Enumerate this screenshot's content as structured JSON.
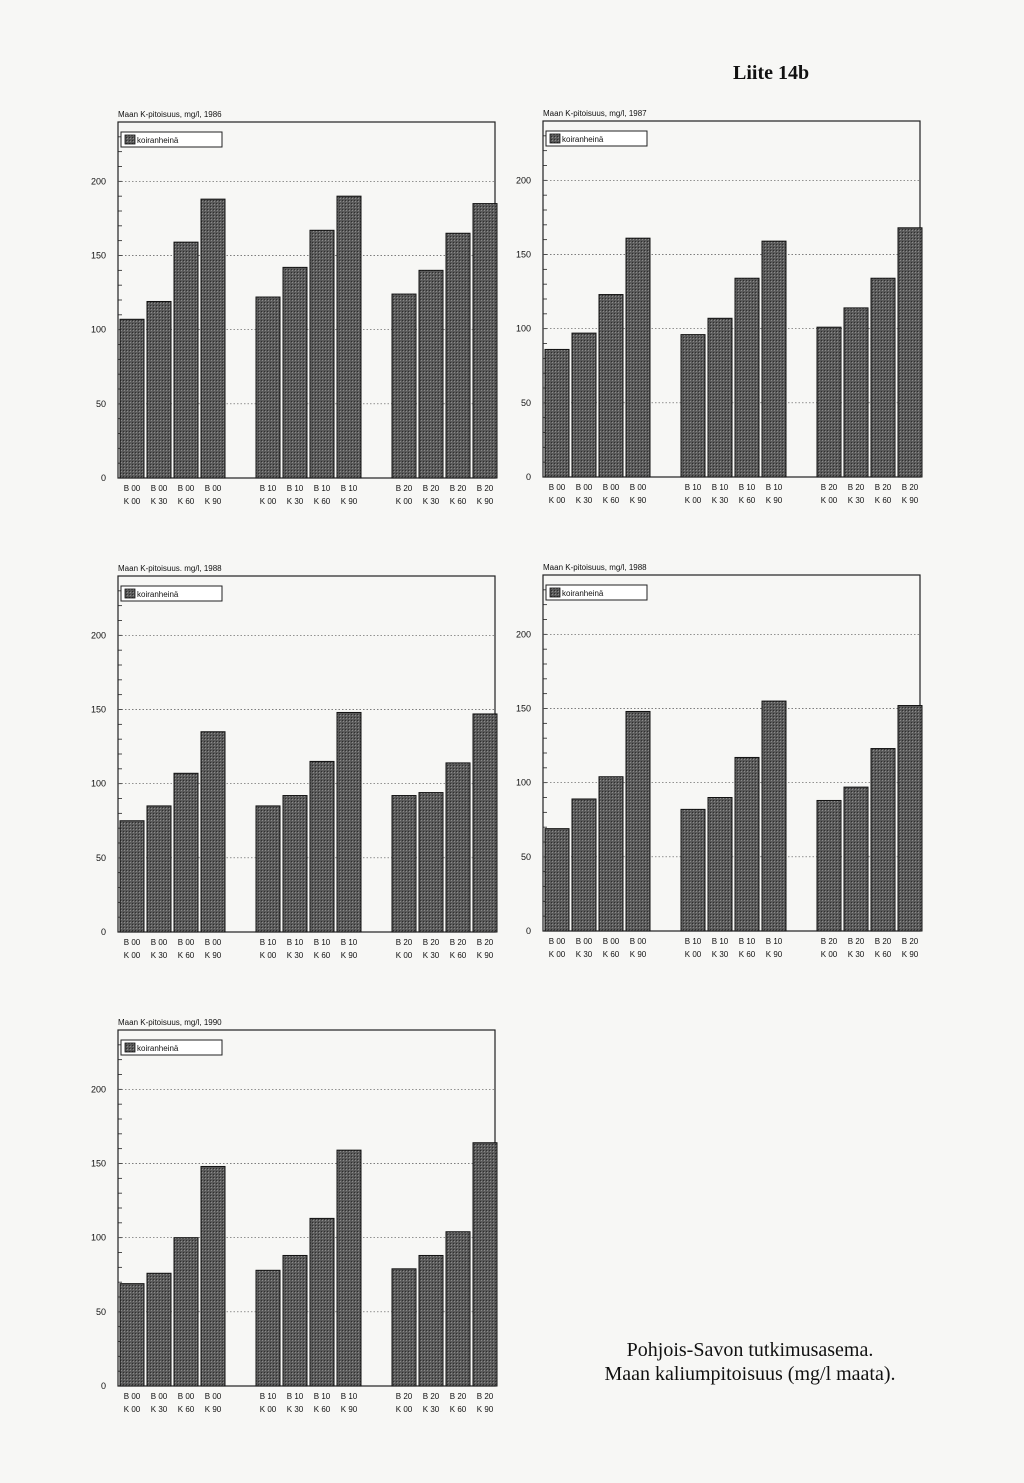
{
  "page_label": "Liite 14b",
  "caption": {
    "line1": "Pohjois-Savon tutkimusasema.",
    "line2": "Maan kaliumpitoisuus (mg/l maata)."
  },
  "colors": {
    "bar_fill": "#5a5a5a",
    "bar_stroke": "#111111",
    "axis": "#222222",
    "gridline": "#555555"
  },
  "chart_data": [
    {
      "type": "bar",
      "title": "Maan K-pitoisuus, mg/l, 1986",
      "legend": "koiranheinä",
      "yticks": [
        0,
        50,
        100,
        150,
        200
      ],
      "ylim": [
        0,
        240
      ],
      "groups": [
        {
          "b_labels": [
            "B 00",
            "B 00",
            "B 00",
            "B 00"
          ],
          "k_labels": [
            "K 00",
            "K 30",
            "K 60",
            "K 90"
          ],
          "values": [
            107,
            119,
            159,
            188
          ]
        },
        {
          "b_labels": [
            "B 10",
            "B 10",
            "B 10",
            "B 10"
          ],
          "k_labels": [
            "K 00",
            "K 30",
            "K 60",
            "K 90"
          ],
          "values": [
            122,
            142,
            167,
            190
          ]
        },
        {
          "b_labels": [
            "B 20",
            "B 20",
            "B 20",
            "B 20"
          ],
          "k_labels": [
            "K 00",
            "K 30",
            "K 60",
            "K 90"
          ],
          "values": [
            124,
            140,
            165,
            185
          ]
        }
      ]
    },
    {
      "type": "bar",
      "title": "Maan K-pitoisuus, mg/l, 1987",
      "legend": "koiranheinä",
      "yticks": [
        0,
        50,
        100,
        150,
        200
      ],
      "ylim": [
        0,
        240
      ],
      "groups": [
        {
          "b_labels": [
            "B 00",
            "B 00",
            "B 00",
            "B 00"
          ],
          "k_labels": [
            "K 00",
            "K 30",
            "K 60",
            "K 90"
          ],
          "values": [
            86,
            97,
            123,
            161
          ]
        },
        {
          "b_labels": [
            "B 10",
            "B 10",
            "B 10",
            "B 10"
          ],
          "k_labels": [
            "K 00",
            "K 30",
            "K 60",
            "K 90"
          ],
          "values": [
            96,
            107,
            134,
            159
          ]
        },
        {
          "b_labels": [
            "B 20",
            "B 20",
            "B 20",
            "B 20"
          ],
          "k_labels": [
            "K 00",
            "K 30",
            "K 60",
            "K 90"
          ],
          "values": [
            101,
            114,
            134,
            168
          ]
        }
      ]
    },
    {
      "type": "bar",
      "title": "Maan K-pitoisuus. mg/l, 1988",
      "legend": "koiranheinä",
      "yticks": [
        0,
        50,
        100,
        150,
        200
      ],
      "ylim": [
        0,
        240
      ],
      "groups": [
        {
          "b_labels": [
            "B 00",
            "B 00",
            "B 00",
            "B 00"
          ],
          "k_labels": [
            "K 00",
            "K 30",
            "K 60",
            "K 90"
          ],
          "values": [
            75,
            85,
            107,
            135
          ]
        },
        {
          "b_labels": [
            "B 10",
            "B 10",
            "B 10",
            "B 10"
          ],
          "k_labels": [
            "K 00",
            "K 30",
            "K 60",
            "K 90"
          ],
          "values": [
            85,
            92,
            115,
            148
          ]
        },
        {
          "b_labels": [
            "B 20",
            "B 20",
            "B 20",
            "B 20"
          ],
          "k_labels": [
            "K 00",
            "K 30",
            "K 60",
            "K 90"
          ],
          "values": [
            92,
            94,
            114,
            147
          ]
        }
      ]
    },
    {
      "type": "bar",
      "title": "Maan K-pitoisuus, mg/l, 1988",
      "legend": "koiranheinä",
      "yticks": [
        0,
        50,
        100,
        150,
        200
      ],
      "ylim": [
        0,
        240
      ],
      "groups": [
        {
          "b_labels": [
            "B 00",
            "B 00",
            "B 00",
            "B 00"
          ],
          "k_labels": [
            "K 00",
            "K 30",
            "K 60",
            "K 90"
          ],
          "values": [
            69,
            89,
            104,
            148
          ]
        },
        {
          "b_labels": [
            "B 10",
            "B 10",
            "B 10",
            "B 10"
          ],
          "k_labels": [
            "K 00",
            "K 30",
            "K 60",
            "K 90"
          ],
          "values": [
            82,
            90,
            117,
            155
          ]
        },
        {
          "b_labels": [
            "B 20",
            "B 20",
            "B 20",
            "B 20"
          ],
          "k_labels": [
            "K 00",
            "K 30",
            "K 60",
            "K 90"
          ],
          "values": [
            88,
            97,
            123,
            152
          ]
        }
      ]
    },
    {
      "type": "bar",
      "title": "Maan K-pitoisuus, mg/l, 1990",
      "legend": "koiranheinä",
      "yticks": [
        0,
        50,
        100,
        150,
        200
      ],
      "ylim": [
        0,
        240
      ],
      "groups": [
        {
          "b_labels": [
            "B 00",
            "B 00",
            "B 00",
            "B 00"
          ],
          "k_labels": [
            "K 00",
            "K 30",
            "K 60",
            "K 90"
          ],
          "values": [
            69,
            76,
            100,
            148
          ]
        },
        {
          "b_labels": [
            "B 10",
            "B 10",
            "B 10",
            "B 10"
          ],
          "k_labels": [
            "K 00",
            "K 30",
            "K 60",
            "K 90"
          ],
          "values": [
            78,
            88,
            113,
            159
          ]
        },
        {
          "b_labels": [
            "B 20",
            "B 20",
            "B 20",
            "B 20"
          ],
          "k_labels": [
            "K 00",
            "K 30",
            "K 60",
            "K 90"
          ],
          "values": [
            79,
            88,
            104,
            164
          ]
        }
      ]
    }
  ]
}
